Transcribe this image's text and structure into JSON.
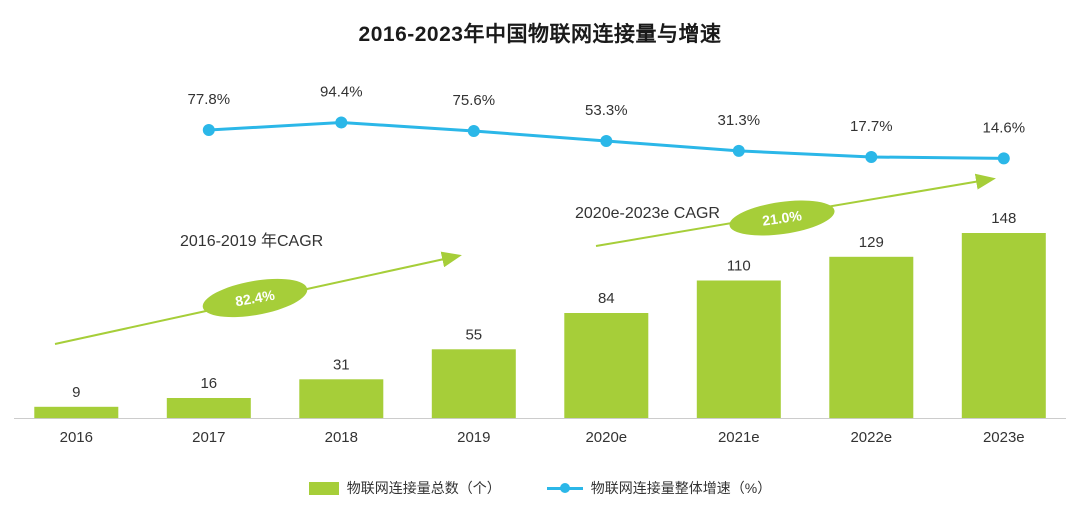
{
  "title": "2016-2023年中国物联网连接量与增速",
  "colors": {
    "bar": "#a6ce39",
    "line": "#2bb7e8",
    "annotation": "#a6ce39",
    "badge_text": "#ffffff",
    "text": "#333333",
    "axis": "#cccccc"
  },
  "chart_data": {
    "type": "bar+line",
    "title": "2016-2023年中国物联网连接量与增速",
    "categories": [
      "2016",
      "2017",
      "2018",
      "2019",
      "2020e",
      "2021e",
      "2022e",
      "2023e"
    ],
    "series": [
      {
        "name": "物联网连接量总数（个）",
        "type": "bar",
        "values": [
          9,
          16,
          31,
          55,
          84,
          110,
          129,
          148
        ]
      },
      {
        "name": "物联网连接量整体增速（%）",
        "type": "line",
        "values": [
          null,
          77.8,
          94.4,
          75.6,
          53.3,
          31.3,
          17.7,
          14.6
        ],
        "point_labels": [
          "",
          "77.8%",
          "94.4%",
          "75.6%",
          "53.3%",
          "31.3%",
          "17.7%",
          "14.6%"
        ]
      }
    ],
    "annotations": [
      {
        "label": "2016-2019 年CAGR",
        "badge": "82.4%"
      },
      {
        "label": "2020e-2023e CAGR",
        "badge": "21.0%"
      }
    ],
    "legend_position": "bottom",
    "grid": false
  }
}
